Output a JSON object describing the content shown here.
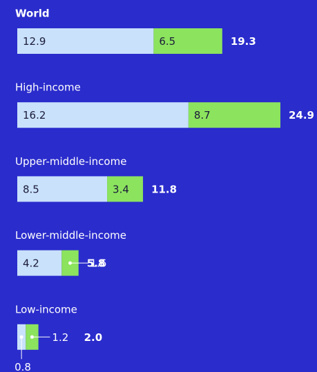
{
  "chart_data": {
    "type": "bar",
    "orientation": "horizontal",
    "stacked": true,
    "categories": [
      "World",
      "High-income",
      "Upper-middle-income",
      "Lower-middle-income",
      "Low-income"
    ],
    "series": [
      {
        "color": "#c9e1fb",
        "values": [
          12.9,
          16.2,
          8.5,
          4.2,
          0.8
        ]
      },
      {
        "color": "#8ce35e",
        "values": [
          6.5,
          8.7,
          3.4,
          1.6,
          1.2
        ]
      }
    ],
    "totals": {
      "values": [
        19.3,
        24.9,
        11.8,
        5.8,
        2.0
      ],
      "value_labels": [
        "19.3",
        "24.9",
        "11.8",
        "5.8",
        "2.0"
      ]
    }
  }
}
